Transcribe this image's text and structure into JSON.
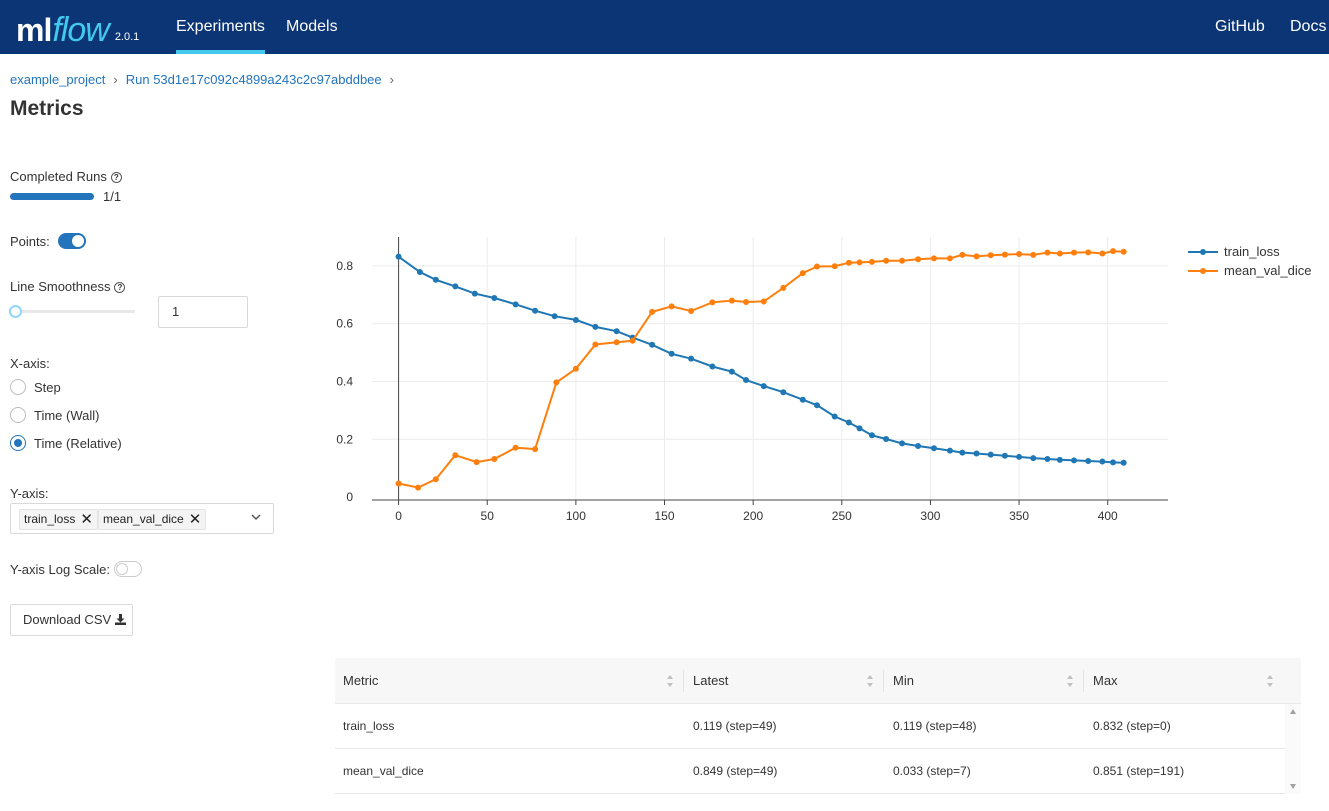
{
  "app": {
    "logo_ml": "ml",
    "logo_flow": "flow",
    "version": "2.0.1"
  },
  "nav": {
    "experiments": "Experiments",
    "models": "Models",
    "github": "GitHub",
    "docs": "Docs"
  },
  "breadcrumb": {
    "project": "example_project",
    "run": "Run 53d1e17c092c4899a243c2c97abddbee",
    "separator": "›"
  },
  "page_title": "Metrics",
  "controls": {
    "completed_runs_label": "Completed Runs",
    "completed_runs_value": "1/1",
    "completed_runs_fraction": 1.0,
    "points_label": "Points:",
    "points_enabled": true,
    "line_smoothness_label": "Line Smoothness",
    "line_smoothness_value": "1",
    "xaxis_label": "X-axis:",
    "xaxis_options": [
      "Step",
      "Time (Wall)",
      "Time (Relative)"
    ],
    "xaxis_selected": "Time (Relative)",
    "yaxis_label": "Y-axis:",
    "yaxis_tags": [
      "train_loss",
      "mean_val_dice"
    ],
    "ylog_label": "Y-axis Log Scale:",
    "ylog_enabled": false,
    "download_label": "Download CSV"
  },
  "chart_data": {
    "type": "line",
    "xlim": [
      -15,
      434
    ],
    "ylim": [
      -0.01,
      0.9
    ],
    "xticks": [
      0,
      50,
      100,
      150,
      200,
      250,
      300,
      350,
      400
    ],
    "yticks": [
      0,
      0.2,
      0.4,
      0.6,
      0.8
    ],
    "ytick_labels": [
      "0",
      "0.2",
      "0.4",
      "0.6",
      "0.8"
    ],
    "series": [
      {
        "name": "train_loss",
        "color": "#1f77b4",
        "x": [
          0,
          12,
          21,
          32,
          43,
          54,
          66,
          77,
          88,
          100,
          111,
          123,
          132,
          143,
          154,
          165,
          177,
          188,
          196,
          206,
          217,
          228,
          236,
          246,
          254,
          260,
          267,
          275,
          284,
          293,
          302,
          311,
          318,
          326,
          334,
          342,
          350,
          358,
          366,
          373,
          381,
          389,
          397,
          403,
          409
        ],
        "y": [
          0.832,
          0.779,
          0.752,
          0.729,
          0.704,
          0.689,
          0.667,
          0.645,
          0.626,
          0.613,
          0.589,
          0.574,
          0.552,
          0.527,
          0.496,
          0.479,
          0.452,
          0.434,
          0.405,
          0.384,
          0.363,
          0.337,
          0.318,
          0.279,
          0.258,
          0.238,
          0.214,
          0.201,
          0.186,
          0.177,
          0.169,
          0.161,
          0.154,
          0.151,
          0.147,
          0.143,
          0.139,
          0.135,
          0.132,
          0.129,
          0.127,
          0.125,
          0.123,
          0.12,
          0.119
        ]
      },
      {
        "name": "mean_val_dice",
        "color": "#ff7f0e",
        "x": [
          0,
          11,
          21,
          32,
          44,
          54,
          66,
          77,
          89,
          100,
          111,
          123,
          132,
          143,
          154,
          165,
          177,
          188,
          196,
          206,
          217,
          228,
          236,
          246,
          254,
          260,
          267,
          275,
          284,
          293,
          302,
          311,
          318,
          326,
          334,
          342,
          350,
          358,
          366,
          373,
          381,
          389,
          397,
          403,
          409
        ],
        "y": [
          0.047,
          0.033,
          0.062,
          0.145,
          0.121,
          0.132,
          0.171,
          0.166,
          0.397,
          0.444,
          0.528,
          0.536,
          0.541,
          0.641,
          0.66,
          0.644,
          0.674,
          0.68,
          0.675,
          0.677,
          0.724,
          0.775,
          0.798,
          0.799,
          0.811,
          0.812,
          0.814,
          0.818,
          0.818,
          0.823,
          0.826,
          0.826,
          0.838,
          0.833,
          0.837,
          0.839,
          0.841,
          0.838,
          0.846,
          0.843,
          0.846,
          0.847,
          0.843,
          0.851,
          0.849
        ]
      }
    ]
  },
  "table": {
    "headers": [
      "Metric",
      "Latest",
      "Min",
      "Max"
    ],
    "rows": [
      [
        "train_loss",
        "0.119 (step=49)",
        "0.119 (step=48)",
        "0.832 (step=0)"
      ],
      [
        "mean_val_dice",
        "0.849 (step=49)",
        "0.033 (step=7)",
        "0.851 (step=191)"
      ]
    ]
  }
}
